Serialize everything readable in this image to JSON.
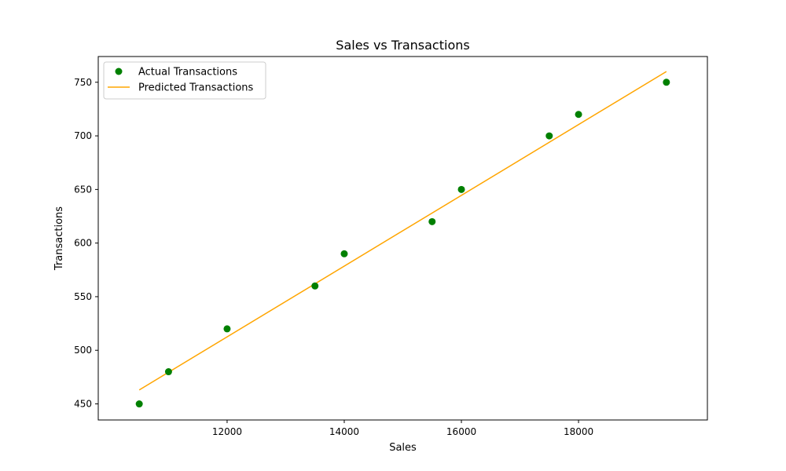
{
  "chart_data": {
    "type": "scatter",
    "title": "Sales vs Transactions",
    "xlabel": "Sales",
    "ylabel": "Transactions",
    "xlim": [
      9800,
      20200
    ],
    "ylim": [
      435,
      774
    ],
    "xticks": [
      12000,
      14000,
      16000,
      18000
    ],
    "yticks": [
      450,
      500,
      550,
      600,
      650,
      700,
      750
    ],
    "grid": false,
    "legend": "upper-left",
    "series": [
      {
        "name": "Actual Transactions",
        "type": "scatter",
        "color": "#008000",
        "points": [
          {
            "x": 10500,
            "y": 450
          },
          {
            "x": 11000,
            "y": 480
          },
          {
            "x": 12000,
            "y": 520
          },
          {
            "x": 13500,
            "y": 560
          },
          {
            "x": 14000,
            "y": 590
          },
          {
            "x": 15500,
            "y": 620
          },
          {
            "x": 16000,
            "y": 650
          },
          {
            "x": 17500,
            "y": 700
          },
          {
            "x": 18000,
            "y": 720
          },
          {
            "x": 19500,
            "y": 750
          }
        ]
      },
      {
        "name": "Predicted Transactions",
        "type": "line",
        "color": "#FFA500",
        "points": [
          {
            "x": 10500,
            "y": 463
          },
          {
            "x": 19500,
            "y": 760
          }
        ]
      }
    ]
  }
}
